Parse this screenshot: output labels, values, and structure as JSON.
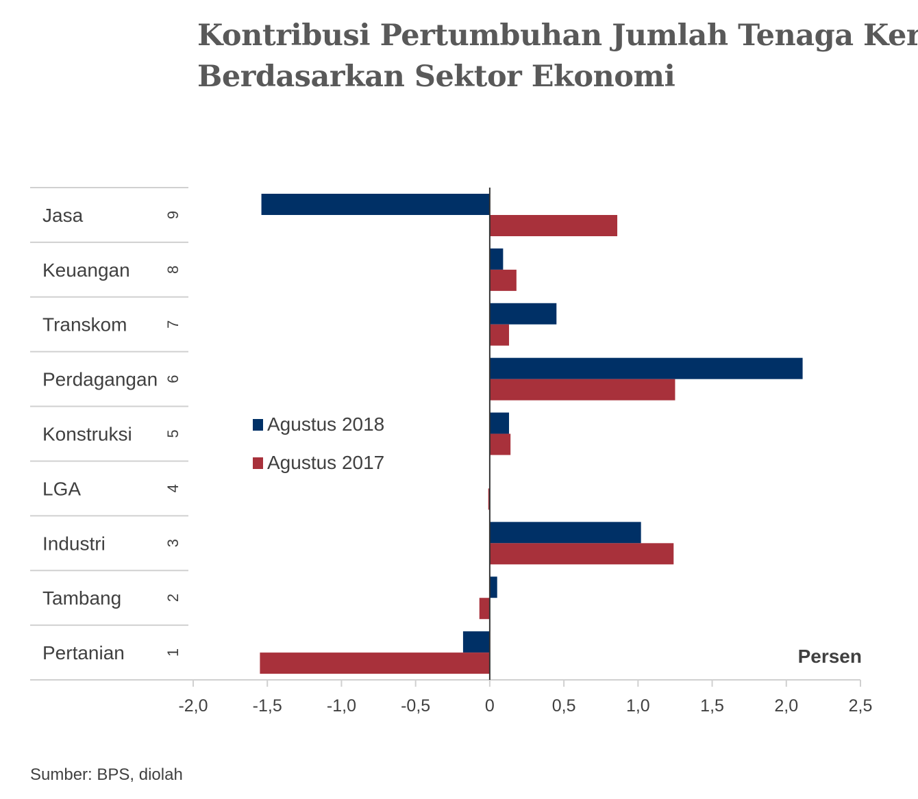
{
  "title_line1": "Kontribusi Pertumbuhan Jumlah Tenaga Kerja",
  "title_line2": "Berdasarkan Sektor Ekonomi",
  "source": "Sumber: BPS, diolah",
  "unit_label": "Persen",
  "colors": {
    "series_2018": "#003066",
    "series_2017": "#A8313B",
    "axis": "#333333",
    "grid": "#d0d0d0"
  },
  "chart_data": {
    "type": "bar",
    "orientation": "horizontal",
    "categories": [
      "Jasa",
      "Keuangan",
      "Transkom",
      "Perdagangan",
      "Konstruksi",
      "LGA",
      "Industri",
      "Tambang",
      "Pertanian"
    ],
    "category_numbers": [
      "9",
      "8",
      "7",
      "6",
      "5",
      "4",
      "3",
      "2",
      "1"
    ],
    "series": [
      {
        "name": "Agustus 2018",
        "values": [
          -1.54,
          0.09,
          0.45,
          2.11,
          0.13,
          0.0,
          1.02,
          0.05,
          -0.18
        ]
      },
      {
        "name": "Agustus 2017",
        "values": [
          0.86,
          0.18,
          0.13,
          1.25,
          0.14,
          -0.01,
          1.24,
          -0.07,
          -1.55
        ]
      }
    ],
    "xlim": [
      -2.0,
      2.5
    ],
    "xticks": [
      "-2,0",
      "-1,5",
      "-1,0",
      "-0,5",
      "0",
      "0,5",
      "1,0",
      "1,5",
      "2,0",
      "2,5"
    ],
    "xlabel": "Persen",
    "legend_position": "center-left"
  }
}
